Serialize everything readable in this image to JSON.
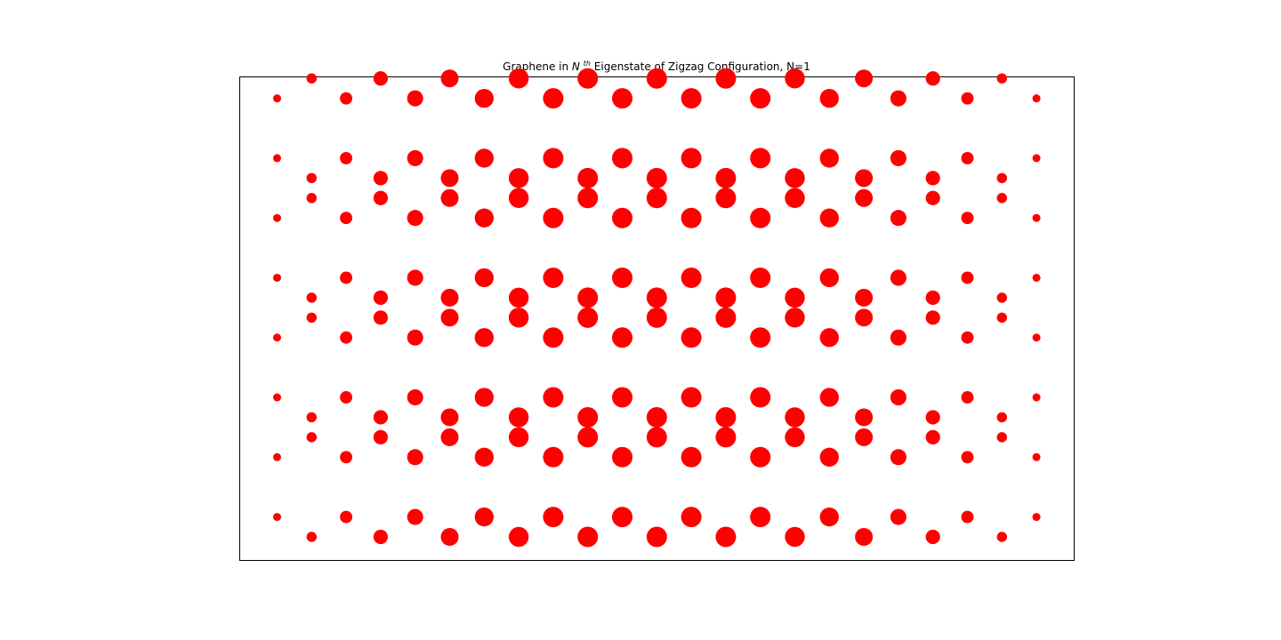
{
  "chart_data": {
    "type": "scatter",
    "title": {
      "prefix": "Graphene in ",
      "math_base": "N",
      "math_sup": "th",
      "suffix": " Eigenstate of Zigzag Configuration, N=1"
    },
    "xlabel": "",
    "ylabel": "",
    "axes_visible": false,
    "grid": false,
    "legend": "none",
    "marker_color": "#ff0000",
    "series": [
      {
        "x": [
          0,
          1,
          2,
          3,
          4,
          5,
          6,
          7,
          8,
          9,
          10,
          11,
          12,
          13,
          14,
          15,
          16,
          17,
          18,
          19,
          20,
          21,
          22,
          0,
          1,
          2,
          3,
          4,
          5,
          6,
          7,
          8,
          9,
          10,
          11,
          12,
          13,
          14,
          15,
          16,
          17,
          18,
          19,
          20,
          21,
          22,
          0,
          1,
          2,
          3,
          4,
          5,
          6,
          7,
          8,
          9,
          10,
          11,
          12,
          13,
          14,
          15,
          16,
          17,
          18,
          19,
          20,
          21,
          22,
          0,
          1,
          2,
          3,
          4,
          5,
          6,
          7,
          8,
          9,
          10,
          11,
          12,
          13,
          14,
          15,
          16,
          17,
          18,
          19,
          20,
          21,
          22,
          0,
          1,
          2,
          3,
          4,
          5,
          6,
          7,
          8,
          9,
          10,
          11,
          12,
          13,
          14,
          15,
          16,
          17,
          18,
          19,
          20,
          21,
          22,
          0,
          1,
          2,
          3,
          4,
          5,
          6,
          7,
          8,
          9,
          10,
          11,
          12,
          13,
          14,
          15,
          16,
          17,
          18,
          19,
          20,
          21,
          22,
          0,
          1,
          2,
          3,
          4,
          5,
          6,
          7,
          8,
          9,
          10,
          11,
          12,
          13,
          14,
          15,
          16,
          17,
          18,
          19,
          20,
          21,
          22,
          0,
          1,
          2,
          3,
          4,
          5,
          6,
          7,
          8,
          9,
          10,
          11,
          12,
          13,
          14,
          15,
          16,
          17,
          18,
          19,
          20,
          21,
          22
        ],
        "y": [
          0.5,
          0,
          0.5,
          0,
          0.5,
          0,
          0.5,
          0,
          0.5,
          0,
          0.5,
          0,
          0.5,
          0,
          0.5,
          0,
          0.5,
          0,
          0.5,
          0,
          0.5,
          0,
          0.5,
          2,
          2.5,
          2,
          2.5,
          2,
          2.5,
          2,
          2.5,
          2,
          2.5,
          2,
          2.5,
          2,
          2.5,
          2,
          2.5,
          2,
          2.5,
          2,
          2.5,
          2,
          2.5,
          2,
          3.5,
          3,
          3.5,
          3,
          3.5,
          3,
          3.5,
          3,
          3.5,
          3,
          3.5,
          3,
          3.5,
          3,
          3.5,
          3,
          3.5,
          3,
          3.5,
          3,
          3.5,
          3,
          3.5,
          5,
          5.5,
          5,
          5.5,
          5,
          5.5,
          5,
          5.5,
          5,
          5.5,
          5,
          5.5,
          5,
          5.5,
          5,
          5.5,
          5,
          5.5,
          5,
          5.5,
          5,
          5.5,
          5,
          6.5,
          6,
          6.5,
          6,
          6.5,
          6,
          6.5,
          6,
          6.5,
          6,
          6.5,
          6,
          6.5,
          6,
          6.5,
          6,
          6.5,
          6,
          6.5,
          6,
          6.5,
          6,
          6.5,
          8,
          8.5,
          8,
          8.5,
          8,
          8.5,
          8,
          8.5,
          8,
          8.5,
          8,
          8.5,
          8,
          8.5,
          8,
          8.5,
          8,
          8.5,
          8,
          8.5,
          8,
          8.5,
          8,
          9.5,
          9,
          9.5,
          9,
          9.5,
          9,
          9.5,
          9,
          9.5,
          9,
          9.5,
          9,
          9.5,
          9,
          9.5,
          9,
          9.5,
          9,
          9.5,
          9,
          9.5,
          9,
          9.5,
          11,
          11.5,
          11,
          11.5,
          11,
          11.5,
          11,
          11.5,
          11,
          11.5,
          11,
          11.5,
          11,
          11.5,
          11,
          11.5,
          11,
          11.5,
          11,
          11.5,
          11,
          11.5,
          11
        ],
        "amplitude": [
          0.26,
          0.39,
          0.52,
          0.64,
          0.74,
          0.84,
          0.91,
          0.97,
          1.0,
          1.0,
          1.0,
          1.0,
          1.0,
          1.0,
          1.0,
          0.97,
          0.91,
          0.84,
          0.74,
          0.64,
          0.52,
          0.39,
          0.26,
          0.26,
          0.39,
          0.52,
          0.64,
          0.74,
          0.84,
          0.91,
          0.97,
          1.0,
          1.0,
          1.0,
          1.0,
          1.0,
          1.0,
          1.0,
          0.97,
          0.91,
          0.84,
          0.74,
          0.64,
          0.52,
          0.39,
          0.26,
          0.26,
          0.39,
          0.52,
          0.64,
          0.74,
          0.84,
          0.91,
          0.97,
          1.0,
          1.0,
          1.0,
          1.0,
          1.0,
          1.0,
          1.0,
          0.97,
          0.91,
          0.84,
          0.74,
          0.64,
          0.52,
          0.39,
          0.26,
          0.26,
          0.39,
          0.52,
          0.64,
          0.74,
          0.84,
          0.91,
          0.97,
          1.0,
          1.0,
          1.0,
          1.0,
          1.0,
          1.0,
          1.0,
          0.97,
          0.91,
          0.84,
          0.74,
          0.64,
          0.52,
          0.39,
          0.26,
          0.26,
          0.39,
          0.52,
          0.64,
          0.74,
          0.84,
          0.91,
          0.97,
          1.0,
          1.0,
          1.0,
          1.0,
          1.0,
          1.0,
          1.0,
          0.97,
          0.91,
          0.84,
          0.74,
          0.64,
          0.52,
          0.39,
          0.26,
          0.26,
          0.39,
          0.52,
          0.64,
          0.74,
          0.84,
          0.91,
          0.97,
          1.0,
          1.0,
          1.0,
          1.0,
          1.0,
          1.0,
          1.0,
          0.97,
          0.91,
          0.84,
          0.74,
          0.64,
          0.52,
          0.39,
          0.26,
          0.26,
          0.39,
          0.52,
          0.64,
          0.74,
          0.84,
          0.91,
          0.97,
          1.0,
          1.0,
          1.0,
          1.0,
          1.0,
          1.0,
          1.0,
          0.97,
          0.91,
          0.84,
          0.74,
          0.64,
          0.52,
          0.39,
          0.26,
          0.26,
          0.39,
          0.52,
          0.64,
          0.74,
          0.84,
          0.91,
          0.97,
          1.0,
          1.0,
          1.0,
          1.0,
          1.0,
          1.0,
          1.0,
          0.97,
          0.91,
          0.84,
          0.74,
          0.64,
          0.52,
          0.39,
          0.26
        ]
      }
    ]
  }
}
